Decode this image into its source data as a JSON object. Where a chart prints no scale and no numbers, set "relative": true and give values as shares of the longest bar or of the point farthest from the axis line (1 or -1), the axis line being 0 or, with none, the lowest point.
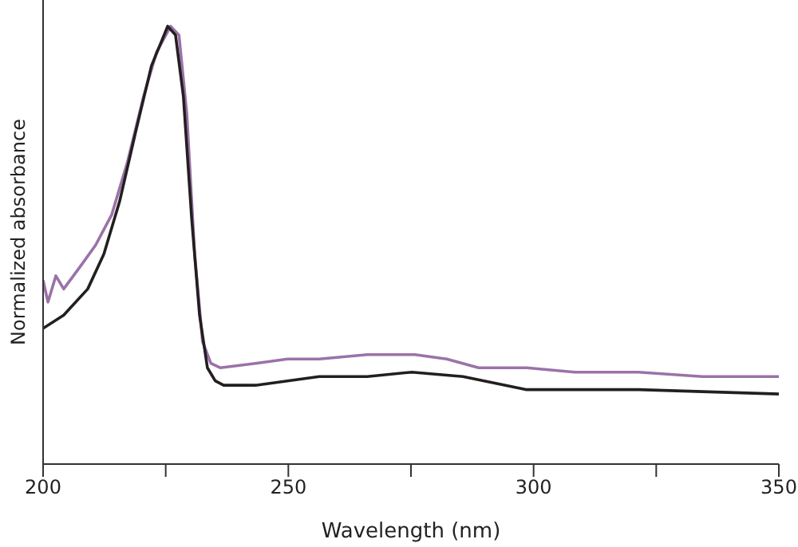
{
  "chart_data": {
    "type": "line",
    "xlabel": "Wavelength (nm)",
    "ylabel": "Normalized absorbance",
    "relative": true,
    "xlim": [
      200,
      350
    ],
    "xticks": [
      200,
      {
        "value": 225,
        "label": null
      },
      250,
      {
        "value": 275,
        "label": null
      },
      300,
      {
        "value": 325,
        "label": null
      },
      350
    ],
    "marker": "none",
    "line_style": "solid",
    "series": [
      {
        "color": "#9b72a8",
        "x": [
          200,
          201,
          202.6,
          204.2,
          207.5,
          210.7,
          214,
          217.2,
          220.5,
          223.1,
          226,
          227.7,
          229.3,
          230.9,
          232.5,
          234.2,
          236.1,
          243.3,
          249.8,
          256.3,
          266.1,
          275.8,
          282.3,
          288.8,
          298.6,
          308.4,
          321.4,
          334.4,
          350
        ],
        "values": [
          0.42,
          0.37,
          0.43,
          0.4,
          0.45,
          0.5,
          0.57,
          0.69,
          0.84,
          0.94,
          1.0,
          0.98,
          0.8,
          0.48,
          0.28,
          0.23,
          0.22,
          0.23,
          0.24,
          0.24,
          0.25,
          0.25,
          0.24,
          0.22,
          0.22,
          0.21,
          0.21,
          0.2,
          0.2
        ]
      },
      {
        "color": "#231f20",
        "x": [
          200,
          204.2,
          209.1,
          212.4,
          215.6,
          218.9,
          222.1,
          225.4,
          227,
          228.6,
          230.3,
          231.9,
          233.5,
          235.1,
          236.8,
          243.3,
          256.3,
          266.1,
          275.2,
          285.6,
          298.6,
          321.4,
          350
        ],
        "values": [
          0.31,
          0.34,
          0.4,
          0.48,
          0.6,
          0.76,
          0.91,
          1.0,
          0.98,
          0.84,
          0.56,
          0.34,
          0.22,
          0.19,
          0.18,
          0.18,
          0.2,
          0.2,
          0.21,
          0.2,
          0.17,
          0.17,
          0.16
        ]
      }
    ]
  }
}
